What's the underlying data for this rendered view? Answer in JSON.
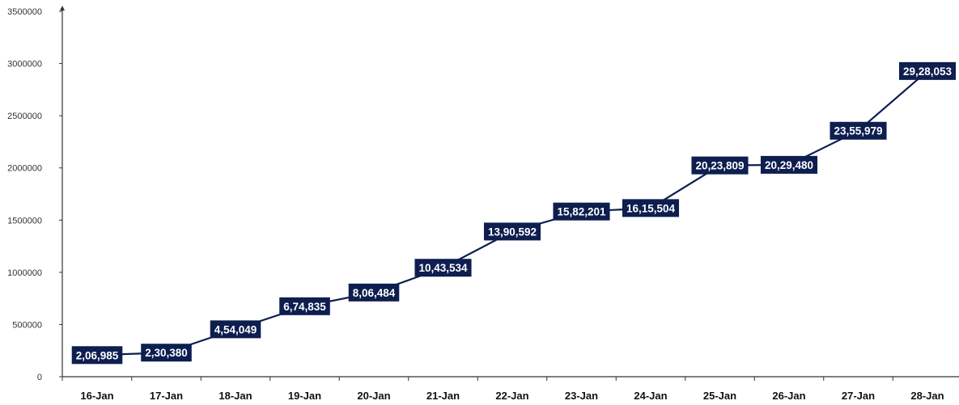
{
  "chart_data": {
    "type": "line",
    "title": "",
    "xlabel": "",
    "ylabel": "",
    "categories": [
      "16-Jan",
      "17-Jan",
      "18-Jan",
      "19-Jan",
      "20-Jan",
      "21-Jan",
      "22-Jan",
      "23-Jan",
      "24-Jan",
      "25-Jan",
      "26-Jan",
      "27-Jan",
      "28-Jan"
    ],
    "series": [
      {
        "values": [
          206985,
          230380,
          454049,
          674835,
          806484,
          1043534,
          1390592,
          1582201,
          1615504,
          2023809,
          2029480,
          2355979,
          2928053
        ],
        "data_labels": [
          "2,06,985",
          "2,30,380",
          "4,54,049",
          "6,74,835",
          "8,06,484",
          "10,43,534",
          "13,90,592",
          "15,82,201",
          "16,15,504",
          "20,23,809",
          "20,29,480",
          "23,55,979",
          "29,28,053"
        ]
      }
    ],
    "ylim": [
      0,
      3500000
    ],
    "yticks": [
      0,
      500000,
      1000000,
      1500000,
      2000000,
      2500000,
      3000000,
      3500000
    ],
    "ytick_labels": [
      "0",
      "500000",
      "1000000",
      "1500000",
      "2000000",
      "2500000",
      "3000000",
      "3500000"
    ],
    "grid": false,
    "legend": "none",
    "colors": {
      "line": "#0d1e4f",
      "label_bg": "#0d1e4f",
      "label_text": "#ffffff",
      "axis": "#333333"
    }
  }
}
